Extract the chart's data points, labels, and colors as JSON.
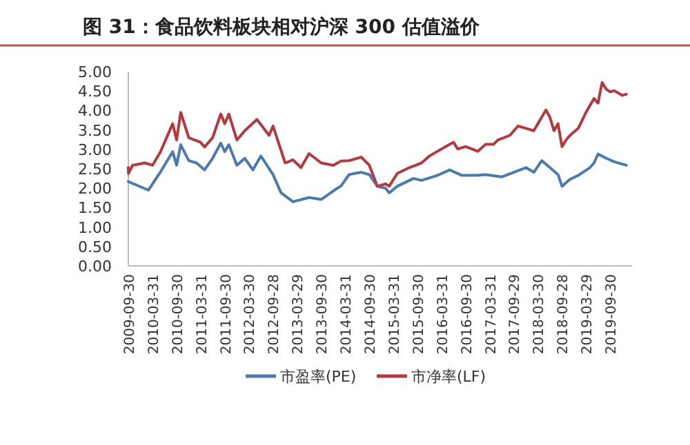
{
  "chart_data": {
    "type": "line",
    "title": "图 31：食品饮料板块相对沪深 300 估值溢价",
    "series": [
      {
        "name": "市盈率(PE)",
        "color": "#4a7ab0",
        "x": [
          "2009-09-30",
          "2010-03",
          "2010-06",
          "2010-09",
          "2010-10",
          "2010-11",
          "2011-01",
          "2011-03",
          "2011-05",
          "2011-07",
          "2011-09",
          "2011-10",
          "2011-11",
          "2012-01",
          "2012-03",
          "2012-05",
          "2012-07",
          "2012-10",
          "2012-12",
          "2013-03",
          "2013-07",
          "2013-10",
          "2014-02",
          "2014-03",
          "2014-05",
          "2014-08",
          "2014-10",
          "2014-12",
          "2015-02",
          "2015-03",
          "2015-05",
          "2015-09",
          "2015-11",
          "2016-03",
          "2016-06",
          "2016-09",
          "2017-01",
          "2017-03",
          "2017-07",
          "2017-10",
          "2018-01",
          "2018-03",
          "2018-05",
          "2018-07",
          "2018-09",
          "2018-10",
          "2018-12",
          "2019-02",
          "2019-05",
          "2019-06",
          "2019-07",
          "2019-09",
          "2019-11",
          "2020-02"
        ],
        "values": [
          2.17,
          1.95,
          2.42,
          2.94,
          2.59,
          3.12,
          2.71,
          2.65,
          2.47,
          2.77,
          3.16,
          2.94,
          3.12,
          2.59,
          2.77,
          2.47,
          2.83,
          2.35,
          1.88,
          1.65,
          1.76,
          1.71,
          2.0,
          2.06,
          2.35,
          2.41,
          2.35,
          2.05,
          2.0,
          1.88,
          2.05,
          2.25,
          2.2,
          2.33,
          2.47,
          2.33,
          2.33,
          2.35,
          2.29,
          2.41,
          2.53,
          2.41,
          2.71,
          2.53,
          2.35,
          2.05,
          2.23,
          2.33,
          2.53,
          2.65,
          2.88,
          2.77,
          2.68,
          2.59
        ]
      },
      {
        "name": "市净率(LF)",
        "color": "#b5383e",
        "x": [
          "2009-09-30",
          "2009-10",
          "2009-11",
          "2010-02",
          "2010-04",
          "2010-06",
          "2010-09",
          "2010-10",
          "2010-11",
          "2011-01",
          "2011-04",
          "2011-05",
          "2011-07",
          "2011-09",
          "2011-10",
          "2011-11",
          "2012-01",
          "2012-03",
          "2012-06",
          "2012-09",
          "2012-10",
          "2013-01",
          "2013-03",
          "2013-05",
          "2013-07",
          "2013-10",
          "2014-01",
          "2014-03",
          "2014-05",
          "2014-08",
          "2014-10",
          "2014-12",
          "2015-02",
          "2015-03",
          "2015-05",
          "2015-08",
          "2015-11",
          "2016-01",
          "2016-03",
          "2016-06",
          "2016-07",
          "2016-08",
          "2016-10",
          "2017-01",
          "2017-03",
          "2017-05",
          "2017-06",
          "2017-09",
          "2017-11",
          "2018-01",
          "2018-03",
          "2018-06",
          "2018-07",
          "2018-08",
          "2018-09",
          "2018-10",
          "2018-11",
          "2018-12",
          "2019-02",
          "2019-04",
          "2019-05",
          "2019-06",
          "2019-07",
          "2019-08",
          "2019-09",
          "2019-10",
          "2019-11",
          "2020-01",
          "2020-02"
        ],
        "values": [
          2.53,
          2.38,
          2.59,
          2.65,
          2.59,
          2.94,
          3.66,
          3.24,
          3.95,
          3.3,
          3.18,
          3.06,
          3.3,
          3.91,
          3.66,
          3.91,
          3.24,
          3.48,
          3.77,
          3.36,
          3.6,
          2.65,
          2.73,
          2.53,
          2.89,
          2.65,
          2.59,
          2.7,
          2.71,
          2.8,
          2.59,
          2.05,
          2.11,
          2.05,
          2.38,
          2.53,
          2.65,
          2.83,
          2.95,
          3.13,
          3.18,
          3.01,
          3.07,
          2.95,
          3.13,
          3.13,
          3.24,
          3.36,
          3.6,
          3.54,
          3.48,
          4.01,
          3.83,
          3.48,
          3.66,
          3.07,
          3.24,
          3.36,
          3.54,
          3.95,
          4.13,
          4.31,
          4.19,
          4.72,
          4.55,
          4.48,
          4.51,
          4.39,
          4.42
        ]
      }
    ],
    "xlim": [
      "2009-09-30",
      "2020-03-15"
    ],
    "xticks": [
      "2009-09-30",
      "2010-03-31",
      "2010-09-30",
      "2011-03-31",
      "2011-09-30",
      "2012-03-30",
      "2012-09-28",
      "2013-03-29",
      "2013-09-30",
      "2014-03-31",
      "2014-09-30",
      "2015-03-31",
      "2015-09-30",
      "2016-03-31",
      "2016-09-30",
      "2017-03-31",
      "2017-09-29",
      "2018-03-30",
      "2018-09-28",
      "2019-03-29",
      "2019-09-30"
    ],
    "ylim": [
      0,
      5
    ],
    "yticks": [
      {
        "value": 0,
        "label": "0.00"
      },
      {
        "value": 0.5,
        "label": "0.50"
      },
      {
        "value": 1,
        "label": "1.00"
      },
      {
        "value": 1.5,
        "label": "1.50"
      },
      {
        "value": 2,
        "label": "2.00"
      },
      {
        "value": 2.5,
        "label": "2.50"
      },
      {
        "value": 3,
        "label": "3.00"
      },
      {
        "value": 3.5,
        "label": "3.50"
      },
      {
        "value": 4,
        "label": "4.00"
      },
      {
        "value": 4.5,
        "label": "4.50"
      },
      {
        "value": 5,
        "label": "5.00"
      }
    ],
    "grid": false,
    "legend": "bottom",
    "marker": "none",
    "line_style": "solid"
  }
}
